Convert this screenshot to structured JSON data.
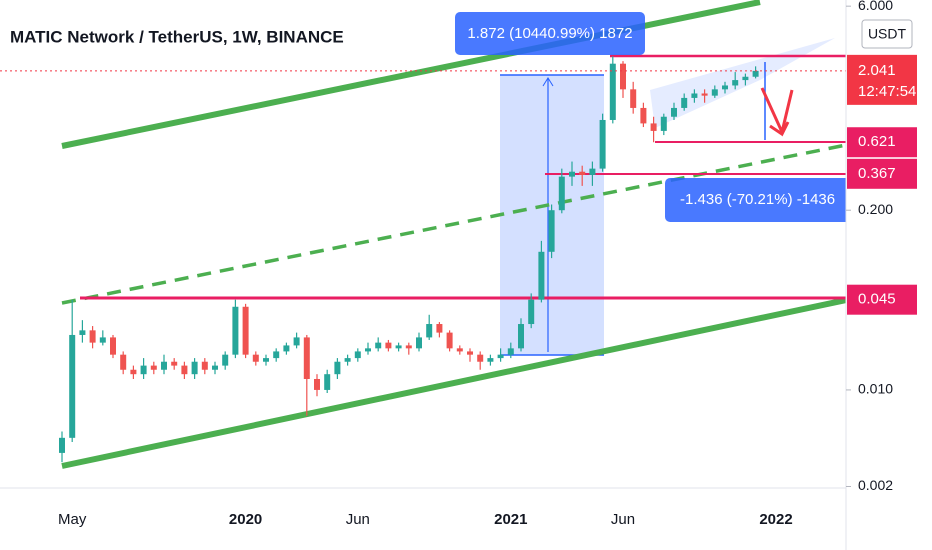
{
  "chart_data": {
    "type": "candlestick",
    "title": "MATIC Network / TetherUS, 1W, BINANCE",
    "currency": "USDT",
    "log_scale": true,
    "up_color": "#26a69a",
    "down_color": "#ef5350",
    "categories": [
      null,
      "May",
      null,
      null,
      null,
      null,
      null,
      null,
      null,
      null,
      null,
      null,
      null,
      null,
      null,
      null,
      null,
      null,
      "2020",
      null,
      null,
      null,
      null,
      null,
      null,
      null,
      null,
      null,
      null,
      "Jun",
      null,
      null,
      null,
      null,
      null,
      null,
      null,
      null,
      null,
      null,
      null,
      null,
      null,
      null,
      "2021",
      null,
      null,
      null,
      null,
      null,
      null,
      null,
      null,
      null,
      null,
      "Jun",
      null,
      null,
      null,
      null,
      null,
      null,
      null,
      null,
      null,
      null,
      null,
      null,
      null,
      null,
      "2022",
      null,
      null,
      null,
      null,
      null,
      null
    ],
    "open": [
      0.0035,
      0.0045,
      0.025,
      0.027,
      0.022,
      0.024,
      0.018,
      0.014,
      0.013,
      0.015,
      0.014,
      0.016,
      0.015,
      0.013,
      0.016,
      0.014,
      0.015,
      0.018,
      0.04,
      0.018,
      0.016,
      0.017,
      0.019,
      0.021,
      0.024,
      0.012,
      0.01,
      0.013,
      0.016,
      0.017,
      0.019,
      0.02,
      0.022,
      0.02,
      0.021,
      0.02,
      0.024,
      0.03,
      0.026,
      0.02,
      0.019,
      0.018,
      0.016,
      0.017,
      0.018,
      0.02,
      0.03,
      0.045,
      0.1,
      0.2,
      0.35,
      0.38,
      0.36,
      0.4,
      0.9,
      2.3,
      1.5,
      1.1,
      0.85,
      0.75,
      0.95,
      1.1,
      1.3,
      1.4,
      1.35,
      1.5,
      1.6,
      1.75,
      1.85,
      null,
      null,
      null,
      null,
      null,
      null,
      null,
      null
    ],
    "high": [
      0.005,
      0.045,
      0.032,
      0.029,
      0.027,
      0.025,
      0.019,
      0.015,
      0.017,
      0.016,
      0.018,
      0.017,
      0.016,
      0.017,
      0.017,
      0.016,
      0.019,
      0.045,
      0.042,
      0.019,
      0.018,
      0.02,
      0.022,
      0.026,
      0.025,
      0.013,
      0.014,
      0.017,
      0.018,
      0.02,
      0.022,
      0.024,
      0.023,
      0.022,
      0.022,
      0.026,
      0.035,
      0.031,
      0.027,
      0.021,
      0.02,
      0.019,
      0.018,
      0.02,
      0.022,
      0.033,
      0.05,
      0.12,
      0.22,
      0.4,
      0.45,
      0.42,
      0.45,
      1.0,
      2.6,
      2.4,
      1.7,
      1.2,
      0.95,
      1.0,
      1.2,
      1.4,
      1.5,
      1.5,
      1.6,
      1.7,
      2.0,
      1.95,
      2.2,
      null,
      null,
      null,
      null,
      null,
      null,
      null,
      null
    ],
    "low": [
      0.003,
      0.0042,
      0.022,
      0.02,
      0.021,
      0.017,
      0.013,
      0.012,
      0.012,
      0.013,
      0.013,
      0.014,
      0.012,
      0.012,
      0.013,
      0.013,
      0.014,
      0.017,
      0.017,
      0.015,
      0.015,
      0.016,
      0.018,
      0.02,
      0.0065,
      0.009,
      0.0095,
      0.012,
      0.015,
      0.016,
      0.018,
      0.019,
      0.019,
      0.019,
      0.018,
      0.019,
      0.023,
      0.024,
      0.019,
      0.018,
      0.016,
      0.014,
      0.015,
      0.016,
      0.017,
      0.019,
      0.028,
      0.043,
      0.09,
      0.19,
      0.3,
      0.3,
      0.3,
      0.38,
      0.85,
      1.3,
      1.0,
      0.8,
      0.621,
      0.7,
      0.9,
      1.05,
      1.2,
      1.2,
      1.3,
      1.4,
      1.5,
      1.6,
      1.8,
      null,
      null,
      null,
      null,
      null,
      null,
      null,
      null
    ],
    "close": [
      0.0045,
      0.025,
      0.027,
      0.022,
      0.024,
      0.018,
      0.014,
      0.013,
      0.015,
      0.014,
      0.016,
      0.015,
      0.013,
      0.016,
      0.014,
      0.015,
      0.018,
      0.04,
      0.018,
      0.016,
      0.017,
      0.019,
      0.021,
      0.024,
      0.012,
      0.01,
      0.013,
      0.016,
      0.017,
      0.019,
      0.02,
      0.022,
      0.02,
      0.021,
      0.02,
      0.024,
      0.03,
      0.026,
      0.02,
      0.019,
      0.018,
      0.016,
      0.017,
      0.018,
      0.02,
      0.03,
      0.045,
      0.1,
      0.2,
      0.35,
      0.38,
      0.36,
      0.4,
      0.9,
      2.3,
      1.5,
      1.1,
      0.85,
      0.75,
      0.95,
      1.1,
      1.3,
      1.4,
      1.35,
      1.5,
      1.6,
      1.75,
      1.85,
      2.041,
      null,
      null,
      null,
      null,
      null,
      null,
      null,
      null
    ],
    "ylim": [
      0.00195,
      6.65
    ],
    "yticks": [
      {
        "value": 6,
        "label": "6.000"
      },
      {
        "value": 0.2,
        "label": "0.200"
      },
      {
        "value": 0.01,
        "label": "0.010"
      },
      0.002
    ],
    "last_price": {
      "value": 2.041,
      "countdown": "12:47:54",
      "color": "#f23645"
    },
    "price_levels": [
      {
        "value": 0.621,
        "color": "#e91e63"
      },
      {
        "value": 0.367,
        "color": "#e91e63"
      },
      {
        "value": 0.045,
        "color": "#e91e63"
      }
    ],
    "annotations": [
      "1.872 (10440.99%) 1872",
      "-1.436 (-70.21%) -1436"
    ]
  }
}
